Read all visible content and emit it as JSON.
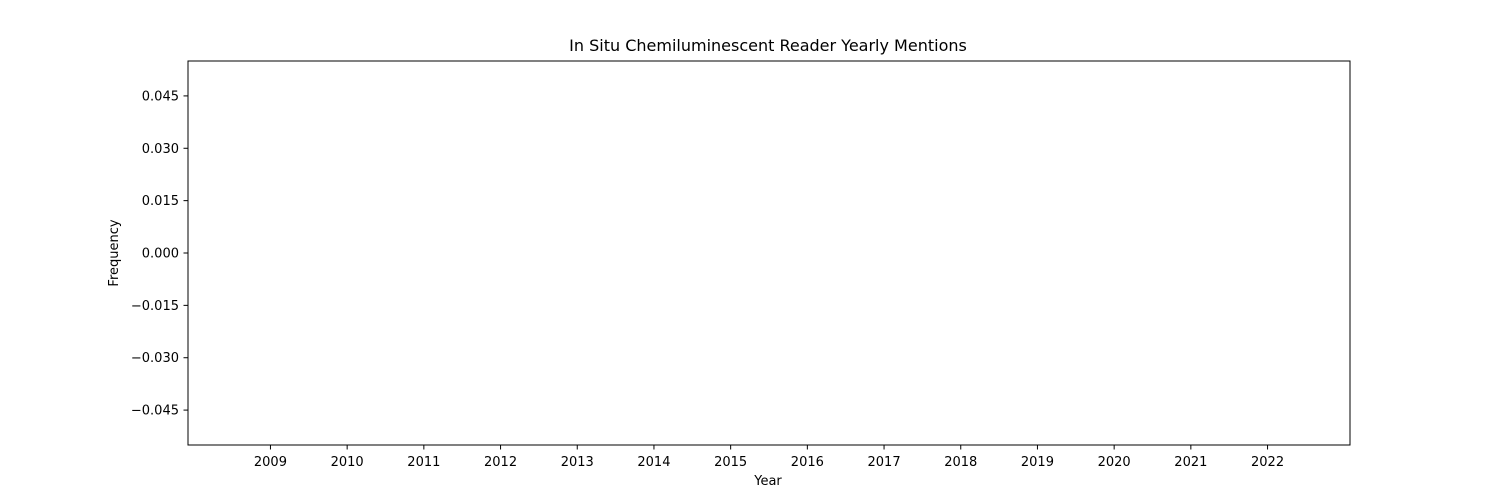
{
  "chart_data": {
    "type": "line",
    "title": "In Situ Chemiluminescent Reader Yearly Mentions",
    "xlabel": "Year",
    "ylabel": "Frequency",
    "x_ticks": [
      "2009",
      "2010",
      "2011",
      "2012",
      "2013",
      "2014",
      "2015",
      "2016",
      "2017",
      "2018",
      "2019",
      "2020",
      "2021",
      "2022"
    ],
    "y_ticks": [
      0.045,
      0.03,
      0.015,
      0.0,
      -0.015,
      -0.03,
      -0.045
    ],
    "y_tick_labels": [
      "0.045",
      "0.030",
      "0.015",
      "0.000",
      "−0.015",
      "−0.030",
      "−0.045"
    ],
    "xlim": [
      2007.925,
      2023.075
    ],
    "ylim": [
      -0.055,
      0.055
    ],
    "grid": false,
    "series": []
  },
  "colors": {
    "axis": "#000000",
    "background": "#ffffff"
  }
}
